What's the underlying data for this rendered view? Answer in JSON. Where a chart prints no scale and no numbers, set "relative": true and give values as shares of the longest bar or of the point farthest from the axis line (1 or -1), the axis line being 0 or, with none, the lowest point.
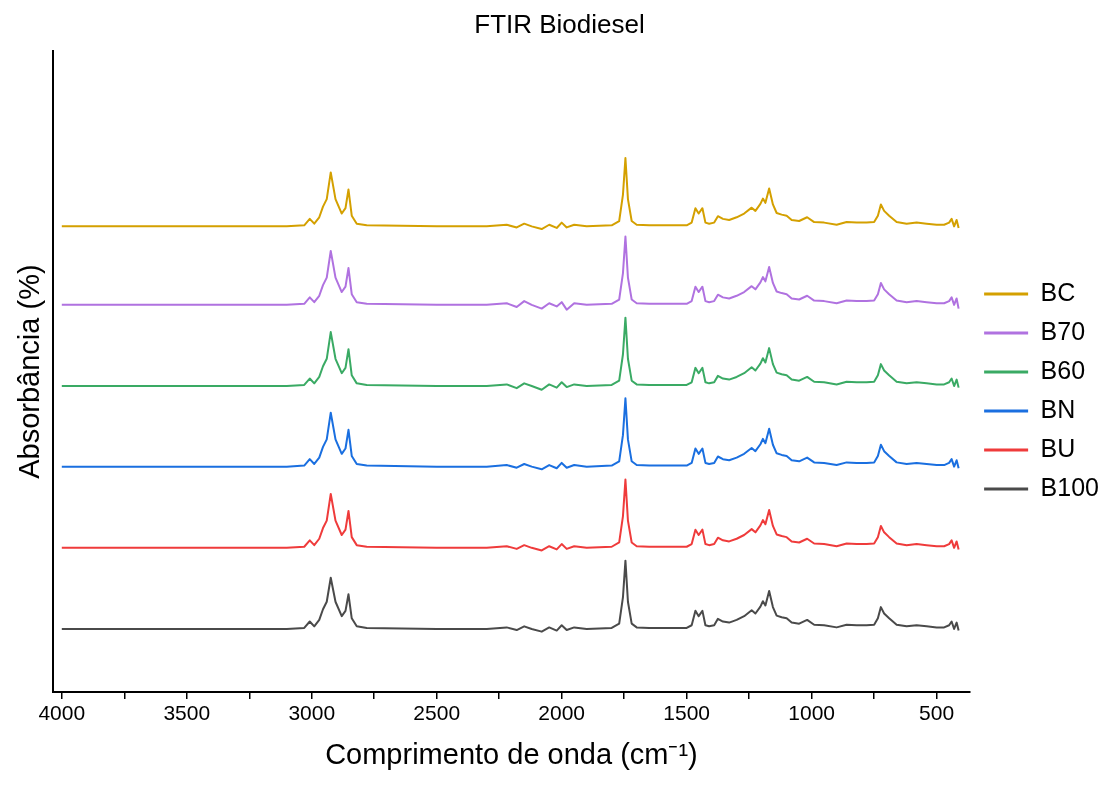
{
  "chart_data": {
    "type": "line",
    "title": "FTIR Biodiesel",
    "xlabel": "Comprimento de onda (cm⁻¹)",
    "ylabel": "Absorbância (%)",
    "relative": true,
    "legend": "right",
    "grid": false,
    "tick_labels": "x",
    "xlim": [
      4036,
      366
    ],
    "xticks": [
      4000,
      {
        "value": 3750,
        "label": null
      },
      3500,
      {
        "value": 3250,
        "label": null
      },
      3000,
      {
        "value": 2750,
        "label": null
      },
      2500,
      {
        "value": 2250,
        "label": null
      },
      2000,
      {
        "value": 1750,
        "label": null
      },
      1500,
      {
        "value": 1250,
        "label": null
      },
      1000,
      {
        "value": 750,
        "label": null
      },
      500
    ],
    "x": [
      4000,
      3500,
      3100,
      3030,
      3008,
      2990,
      2970,
      2955,
      2940,
      2924,
      2905,
      2880,
      2865,
      2853,
      2840,
      2820,
      2780,
      2500,
      2300,
      2220,
      2180,
      2150,
      2120,
      2080,
      2050,
      2020,
      2000,
      1980,
      1950,
      1900,
      1800,
      1770,
      1755,
      1745,
      1735,
      1720,
      1700,
      1650,
      1500,
      1480,
      1465,
      1452,
      1437,
      1425,
      1410,
      1390,
      1375,
      1355,
      1330,
      1300,
      1270,
      1240,
      1225,
      1205,
      1195,
      1185,
      1170,
      1155,
      1140,
      1120,
      1100,
      1080,
      1050,
      1018,
      990,
      950,
      900,
      860,
      820,
      780,
      750,
      735,
      723,
      710,
      690,
      660,
      620,
      580,
      540,
      500,
      470,
      450,
      440,
      430,
      420,
      412
    ],
    "series": [
      {
        "name": "BC",
        "color": "#d4a000",
        "values": [
          0.872,
          0.872,
          0.872,
          0.874,
          0.886,
          0.877,
          0.889,
          0.909,
          0.923,
          0.973,
          0.923,
          0.896,
          0.906,
          0.941,
          0.892,
          0.877,
          0.874,
          0.872,
          0.872,
          0.875,
          0.87,
          0.877,
          0.872,
          0.867,
          0.875,
          0.869,
          0.879,
          0.87,
          0.875,
          0.872,
          0.874,
          0.882,
          0.931,
          1.0,
          0.923,
          0.882,
          0.875,
          0.874,
          0.874,
          0.879,
          0.906,
          0.896,
          0.906,
          0.879,
          0.877,
          0.879,
          0.891,
          0.886,
          0.884,
          0.889,
          0.896,
          0.907,
          0.901,
          0.914,
          0.924,
          0.916,
          0.943,
          0.913,
          0.897,
          0.894,
          0.892,
          0.884,
          0.882,
          0.889,
          0.88,
          0.879,
          0.875,
          0.88,
          0.879,
          0.879,
          0.88,
          0.892,
          0.913,
          0.901,
          0.892,
          0.88,
          0.877,
          0.879,
          0.877,
          0.875,
          0.875,
          0.879,
          0.886,
          0.872,
          0.884,
          0.869
        ]
      },
      {
        "name": "B70",
        "color": "#b072e0",
        "values": [
          0.725,
          0.725,
          0.725,
          0.727,
          0.739,
          0.73,
          0.742,
          0.762,
          0.776,
          0.826,
          0.776,
          0.749,
          0.759,
          0.794,
          0.745,
          0.73,
          0.727,
          0.725,
          0.725,
          0.728,
          0.721,
          0.732,
          0.725,
          0.718,
          0.728,
          0.722,
          0.73,
          0.716,
          0.728,
          0.725,
          0.727,
          0.735,
          0.784,
          0.853,
          0.776,
          0.735,
          0.728,
          0.727,
          0.727,
          0.732,
          0.759,
          0.749,
          0.759,
          0.732,
          0.73,
          0.732,
          0.744,
          0.739,
          0.737,
          0.742,
          0.749,
          0.76,
          0.754,
          0.767,
          0.777,
          0.769,
          0.796,
          0.766,
          0.75,
          0.747,
          0.745,
          0.737,
          0.735,
          0.742,
          0.733,
          0.732,
          0.728,
          0.733,
          0.732,
          0.732,
          0.733,
          0.745,
          0.766,
          0.754,
          0.745,
          0.733,
          0.73,
          0.732,
          0.73,
          0.728,
          0.728,
          0.732,
          0.739,
          0.725,
          0.737,
          0.718
        ]
      },
      {
        "name": "B60",
        "color": "#3aaa64",
        "values": [
          0.573,
          0.573,
          0.573,
          0.575,
          0.587,
          0.578,
          0.59,
          0.61,
          0.624,
          0.674,
          0.624,
          0.597,
          0.607,
          0.642,
          0.593,
          0.578,
          0.575,
          0.573,
          0.573,
          0.576,
          0.569,
          0.578,
          0.573,
          0.566,
          0.576,
          0.57,
          0.58,
          0.571,
          0.576,
          0.573,
          0.575,
          0.583,
          0.632,
          0.701,
          0.624,
          0.583,
          0.576,
          0.575,
          0.575,
          0.58,
          0.607,
          0.597,
          0.607,
          0.58,
          0.578,
          0.58,
          0.592,
          0.587,
          0.585,
          0.59,
          0.597,
          0.608,
          0.602,
          0.615,
          0.625,
          0.617,
          0.644,
          0.614,
          0.598,
          0.595,
          0.593,
          0.585,
          0.583,
          0.59,
          0.581,
          0.58,
          0.576,
          0.581,
          0.58,
          0.58,
          0.581,
          0.593,
          0.614,
          0.602,
          0.593,
          0.581,
          0.578,
          0.58,
          0.578,
          0.576,
          0.576,
          0.58,
          0.587,
          0.573,
          0.585,
          0.57
        ]
      },
      {
        "name": "BN",
        "color": "#1a6fe0",
        "values": [
          0.422,
          0.422,
          0.422,
          0.424,
          0.436,
          0.427,
          0.439,
          0.459,
          0.473,
          0.523,
          0.473,
          0.446,
          0.456,
          0.491,
          0.442,
          0.427,
          0.424,
          0.422,
          0.422,
          0.425,
          0.42,
          0.427,
          0.422,
          0.417,
          0.425,
          0.419,
          0.429,
          0.42,
          0.425,
          0.422,
          0.424,
          0.432,
          0.481,
          0.55,
          0.473,
          0.432,
          0.425,
          0.424,
          0.424,
          0.429,
          0.456,
          0.446,
          0.456,
          0.429,
          0.427,
          0.429,
          0.441,
          0.436,
          0.434,
          0.439,
          0.446,
          0.457,
          0.451,
          0.464,
          0.474,
          0.466,
          0.493,
          0.463,
          0.447,
          0.444,
          0.442,
          0.434,
          0.432,
          0.439,
          0.43,
          0.429,
          0.425,
          0.43,
          0.429,
          0.429,
          0.43,
          0.442,
          0.463,
          0.451,
          0.442,
          0.43,
          0.427,
          0.429,
          0.427,
          0.425,
          0.425,
          0.429,
          0.436,
          0.422,
          0.434,
          0.419
        ]
      },
      {
        "name": "BU",
        "color": "#ef3b3b",
        "values": [
          0.27,
          0.27,
          0.27,
          0.272,
          0.284,
          0.275,
          0.287,
          0.307,
          0.321,
          0.371,
          0.321,
          0.294,
          0.304,
          0.339,
          0.29,
          0.275,
          0.272,
          0.27,
          0.27,
          0.273,
          0.268,
          0.275,
          0.27,
          0.265,
          0.273,
          0.267,
          0.277,
          0.268,
          0.273,
          0.27,
          0.272,
          0.28,
          0.329,
          0.398,
          0.321,
          0.28,
          0.273,
          0.272,
          0.272,
          0.277,
          0.304,
          0.294,
          0.304,
          0.277,
          0.275,
          0.277,
          0.289,
          0.284,
          0.282,
          0.287,
          0.294,
          0.305,
          0.299,
          0.312,
          0.322,
          0.314,
          0.341,
          0.311,
          0.295,
          0.292,
          0.29,
          0.282,
          0.28,
          0.287,
          0.278,
          0.277,
          0.273,
          0.278,
          0.277,
          0.277,
          0.278,
          0.29,
          0.311,
          0.299,
          0.29,
          0.278,
          0.275,
          0.277,
          0.275,
          0.273,
          0.273,
          0.277,
          0.284,
          0.27,
          0.282,
          0.267
        ]
      },
      {
        "name": "B100",
        "color": "#4a4a4a",
        "values": [
          0.118,
          0.118,
          0.118,
          0.12,
          0.132,
          0.123,
          0.135,
          0.155,
          0.169,
          0.214,
          0.169,
          0.142,
          0.152,
          0.183,
          0.138,
          0.123,
          0.12,
          0.118,
          0.118,
          0.121,
          0.116,
          0.123,
          0.118,
          0.113,
          0.121,
          0.115,
          0.125,
          0.116,
          0.121,
          0.118,
          0.12,
          0.128,
          0.177,
          0.246,
          0.169,
          0.128,
          0.121,
          0.12,
          0.12,
          0.125,
          0.152,
          0.142,
          0.152,
          0.125,
          0.123,
          0.125,
          0.137,
          0.132,
          0.13,
          0.135,
          0.142,
          0.153,
          0.147,
          0.16,
          0.17,
          0.162,
          0.189,
          0.159,
          0.143,
          0.14,
          0.138,
          0.13,
          0.128,
          0.135,
          0.126,
          0.125,
          0.121,
          0.126,
          0.125,
          0.125,
          0.126,
          0.138,
          0.159,
          0.147,
          0.138,
          0.126,
          0.123,
          0.125,
          0.123,
          0.121,
          0.121,
          0.125,
          0.132,
          0.118,
          0.13,
          0.115
        ]
      }
    ]
  }
}
